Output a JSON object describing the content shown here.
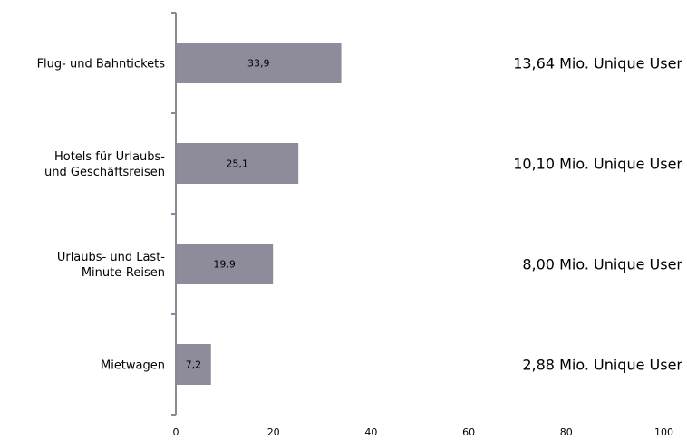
{
  "chart_data": {
    "type": "bar",
    "orientation": "horizontal",
    "categories": [
      [
        "Flug- und Bahntickets"
      ],
      [
        "Hotels für Urlaubs-",
        "und Geschäftsreisen"
      ],
      [
        "Urlaubs- und Last-",
        "Minute-Reisen"
      ],
      [
        "Mietwagen"
      ]
    ],
    "values": [
      33.9,
      25.1,
      19.9,
      7.2
    ],
    "data_labels": [
      "33,9",
      "25,1",
      "19,9",
      "7,2"
    ],
    "side_annotations": [
      "13,64 Mio. Unique User",
      "10,10 Mio. Unique User",
      "8,00 Mio. Unique User",
      "2,88 Mio. Unique User"
    ],
    "xlim": [
      0,
      100
    ],
    "xticks": [
      0,
      20,
      40,
      60,
      80,
      100
    ],
    "xtick_labels": [
      "0",
      "20",
      "40",
      "60",
      "80",
      "100"
    ],
    "grid": false,
    "bar_color": "#8e8c9a",
    "axis_color": "#8a8a96"
  }
}
